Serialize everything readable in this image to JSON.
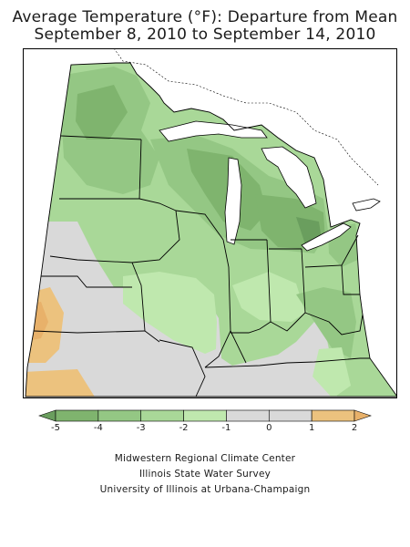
{
  "title": {
    "line1": "Average Temperature (°F): Departure from Mean",
    "line2": "September 8, 2010 to September 14, 2010"
  },
  "legend": {
    "bins": [
      {
        "from": -6,
        "to": -5,
        "color": "#6a9e5e"
      },
      {
        "from": -5,
        "to": -4,
        "color": "#7fb46e"
      },
      {
        "from": -4,
        "to": -3,
        "color": "#94c784"
      },
      {
        "from": -3,
        "to": -2,
        "color": "#a9d898"
      },
      {
        "from": -2,
        "to": -1,
        "color": "#bfe8ae"
      },
      {
        "from": -1,
        "to": 0,
        "color": "#d9d9d9"
      },
      {
        "from": 0,
        "to": 1,
        "color": "#d9d9d9"
      },
      {
        "from": 1,
        "to": 2,
        "color": "#ecc27e"
      },
      {
        "from": 2,
        "to": 3,
        "color": "#e8b16a"
      }
    ],
    "tick_labels": [
      "-5",
      "-4",
      "-3",
      "-2",
      "-1",
      "0",
      "1",
      "2"
    ]
  },
  "credits": {
    "line1": "Midwestern Regional Climate Center",
    "line2": "Illinois State Water Survey",
    "line3": "University of Illinois at Urbana-Champaign"
  },
  "colors": {
    "background": "#ffffff",
    "outline": "#000000",
    "water": "#ffffff"
  }
}
